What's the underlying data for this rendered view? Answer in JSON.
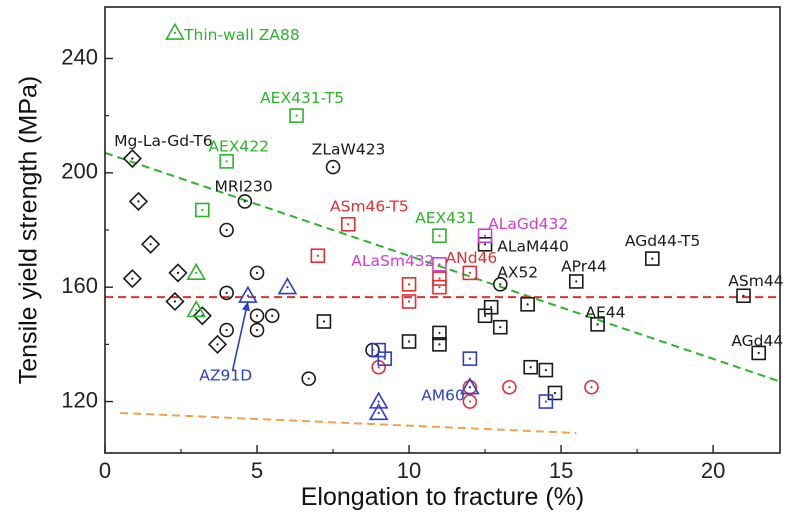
{
  "chart_data": {
    "type": "scatter",
    "title": "",
    "xlabel": "Elongation to fracture (%)",
    "ylabel": "Tensile yield strength (MPa)",
    "xlim": [
      0,
      22.2
    ],
    "ylim": [
      102,
      258
    ],
    "xticks": [
      0,
      5,
      10,
      15,
      20
    ],
    "yticks": [
      120,
      160,
      200,
      240
    ],
    "grid": false,
    "colors": {
      "black": "#1a1a1a",
      "green": "#2cb52c",
      "red": "#e03030",
      "blue": "#2a3fd0",
      "magenta": "#d040d0",
      "orange": "#f0a050"
    },
    "series": [
      {
        "name": "black-diamonds",
        "marker": "diamond",
        "color": "black",
        "points": [
          [
            0.9,
            205
          ],
          [
            1.1,
            190
          ],
          [
            1.5,
            175
          ],
          [
            0.9,
            163
          ],
          [
            2.4,
            165
          ],
          [
            2.3,
            155
          ],
          [
            3.2,
            150
          ],
          [
            3.7,
            140
          ]
        ]
      },
      {
        "name": "black-circles",
        "marker": "circle",
        "color": "black",
        "points": [
          [
            4.6,
            190
          ],
          [
            4.0,
            180
          ],
          [
            5.0,
            165
          ],
          [
            4.0,
            158
          ],
          [
            5.0,
            150
          ],
          [
            5.5,
            150
          ],
          [
            5.0,
            145
          ],
          [
            4.0,
            145
          ],
          [
            6.7,
            128
          ],
          [
            8.8,
            138
          ],
          [
            7.5,
            202
          ],
          [
            13.0,
            161
          ]
        ]
      },
      {
        "name": "black-squares",
        "marker": "square",
        "color": "black",
        "points": [
          [
            7.2,
            148
          ],
          [
            10.0,
            141
          ],
          [
            11.0,
            144
          ],
          [
            11.0,
            140
          ],
          [
            12.5,
            150
          ],
          [
            12.7,
            153
          ],
          [
            13.0,
            146
          ],
          [
            13.9,
            154
          ],
          [
            14.0,
            132
          ],
          [
            14.5,
            131
          ],
          [
            14.8,
            123
          ],
          [
            12.5,
            175
          ],
          [
            15.5,
            162
          ],
          [
            16.2,
            147
          ],
          [
            18.0,
            170
          ],
          [
            21.0,
            157
          ],
          [
            21.5,
            137
          ]
        ]
      },
      {
        "name": "green-squares",
        "marker": "square",
        "color": "green",
        "points": [
          [
            6.3,
            220
          ],
          [
            4.0,
            204
          ],
          [
            3.2,
            187
          ],
          [
            11.0,
            178
          ]
        ]
      },
      {
        "name": "green-triangles",
        "marker": "triangle",
        "color": "green",
        "points": [
          [
            2.3,
            249
          ],
          [
            3.0,
            165
          ],
          [
            3.0,
            152
          ]
        ]
      },
      {
        "name": "red-squares",
        "marker": "square",
        "color": "red",
        "points": [
          [
            8.0,
            182
          ],
          [
            7.0,
            171
          ],
          [
            10.0,
            161
          ],
          [
            10.0,
            155
          ],
          [
            11.0,
            163
          ],
          [
            11.0,
            160
          ],
          [
            12.0,
            165
          ]
        ]
      },
      {
        "name": "red-circles",
        "marker": "circle",
        "color": "red",
        "points": [
          [
            9.0,
            132
          ],
          [
            12.0,
            125
          ],
          [
            12.0,
            120
          ],
          [
            13.3,
            125
          ],
          [
            16.0,
            125
          ]
        ]
      },
      {
        "name": "blue-squares",
        "marker": "square",
        "color": "blue",
        "points": [
          [
            9.0,
            138
          ],
          [
            9.2,
            135
          ],
          [
            12.0,
            135
          ],
          [
            14.5,
            120
          ]
        ]
      },
      {
        "name": "blue-triangles",
        "marker": "triangle",
        "color": "blue",
        "points": [
          [
            6.0,
            160
          ],
          [
            4.7,
            157
          ],
          [
            9.0,
            120
          ],
          [
            9.0,
            116
          ],
          [
            12.0,
            125
          ]
        ]
      },
      {
        "name": "magenta-squares",
        "marker": "square",
        "color": "magenta",
        "points": [
          [
            11.0,
            168
          ],
          [
            12.5,
            178
          ]
        ]
      }
    ],
    "reference_lines": [
      {
        "name": "green-trend",
        "color": "green",
        "from": [
          0,
          207
        ],
        "to": [
          22.2,
          127
        ]
      },
      {
        "name": "orange-trend",
        "color": "orange",
        "from": [
          0.5,
          116
        ],
        "to": [
          15.5,
          109
        ]
      },
      {
        "name": "red-mean",
        "color": "red",
        "from": [
          0,
          156.5
        ],
        "to": [
          22.2,
          156.5
        ]
      }
    ],
    "annotations": [
      {
        "text": "Thin-wall ZA88",
        "x": 2.6,
        "y": 248,
        "color": "green",
        "anchor": "start"
      },
      {
        "text": "AEX431-T5",
        "x": 5.1,
        "y": 226,
        "color": "green",
        "anchor": "start"
      },
      {
        "text": "Mg-La-Gd-T6",
        "x": 0.3,
        "y": 211,
        "color": "black",
        "anchor": "start"
      },
      {
        "text": "AEX422",
        "x": 3.4,
        "y": 209,
        "color": "green",
        "anchor": "start"
      },
      {
        "text": "ZLaW423",
        "x": 6.8,
        "y": 208,
        "color": "black",
        "anchor": "start"
      },
      {
        "text": "MRI230",
        "x": 3.6,
        "y": 195,
        "color": "black",
        "anchor": "start"
      },
      {
        "text": "ASm46-T5",
        "x": 7.4,
        "y": 188,
        "color": "red",
        "anchor": "start"
      },
      {
        "text": "AEX431",
        "x": 10.2,
        "y": 184,
        "color": "green",
        "anchor": "start"
      },
      {
        "text": "ALaGd432",
        "x": 12.6,
        "y": 182,
        "color": "magenta",
        "anchor": "start"
      },
      {
        "text": "ALaM440",
        "x": 12.9,
        "y": 174,
        "color": "black",
        "anchor": "start"
      },
      {
        "text": "AGd44-T5",
        "x": 17.1,
        "y": 176,
        "color": "black",
        "anchor": "start"
      },
      {
        "text": "ALaSm432",
        "x": 8.1,
        "y": 169,
        "color": "magenta",
        "anchor": "start"
      },
      {
        "text": "ANd46",
        "x": 11.2,
        "y": 170,
        "color": "red",
        "anchor": "start"
      },
      {
        "text": "AX52",
        "x": 12.9,
        "y": 165,
        "color": "black",
        "anchor": "start"
      },
      {
        "text": "APr44",
        "x": 15.0,
        "y": 167,
        "color": "black",
        "anchor": "start"
      },
      {
        "text": "ASm44",
        "x": 20.5,
        "y": 162,
        "color": "black",
        "anchor": "start"
      },
      {
        "text": "AE44",
        "x": 15.8,
        "y": 151,
        "color": "black",
        "anchor": "start"
      },
      {
        "text": "AGd44",
        "x": 20.6,
        "y": 141,
        "color": "black",
        "anchor": "start"
      },
      {
        "text": "AZ91D",
        "x": 3.1,
        "y": 129,
        "color": "blue",
        "anchor": "start"
      },
      {
        "text": "AM60",
        "x": 10.4,
        "y": 122,
        "color": "blue",
        "anchor": "start"
      }
    ],
    "arrow": {
      "from": [
        4.2,
        131
      ],
      "to": [
        4.7,
        155
      ],
      "color": "blue"
    }
  }
}
